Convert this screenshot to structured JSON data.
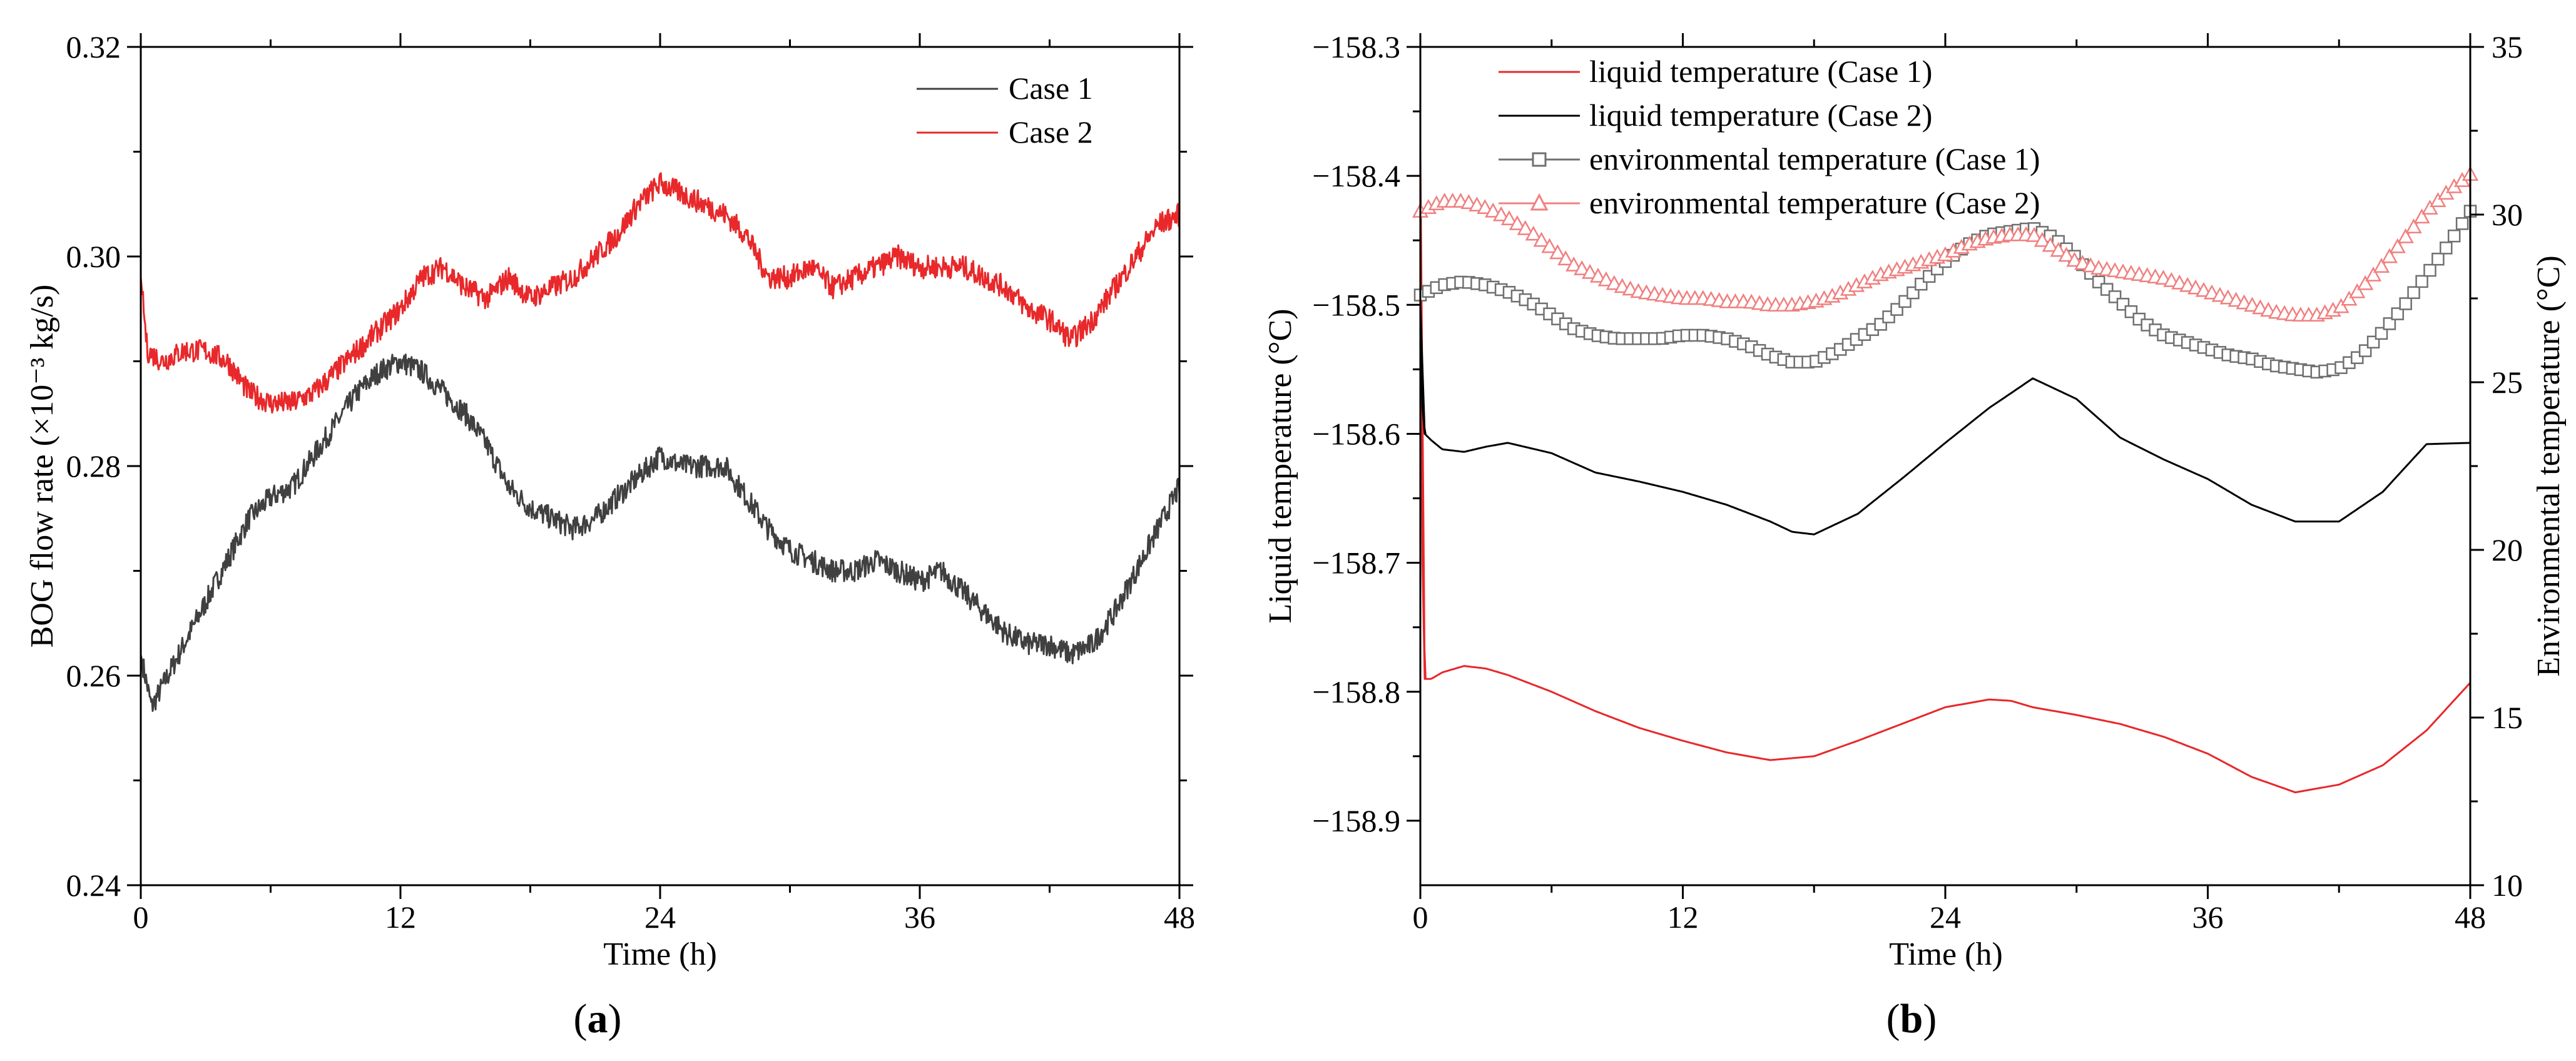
{
  "chart_data": [
    {
      "id": "a",
      "type": "line",
      "panel_label_open": "(",
      "panel_label_letter": "a",
      "panel_label_close": ")",
      "xlabel": "Time (h)",
      "ylabel": "BOG flow rate (×10⁻³ kg/s)",
      "xlim": [
        0,
        48
      ],
      "ylim": [
        0.24,
        0.32
      ],
      "xticks": [
        0,
        12,
        24,
        36,
        48
      ],
      "xtick_labels": [
        "0",
        "12",
        "24",
        "36",
        "48"
      ],
      "yticks": [
        0.24,
        0.26,
        0.28,
        0.3,
        0.32
      ],
      "ytick_labels": [
        "0.24",
        "0.26",
        "0.28",
        "0.30",
        "0.32"
      ],
      "legend_position": "top-right",
      "series": [
        {
          "name": "Case 1",
          "color": "#404040",
          "x": [
            0,
            0.5,
            1,
            2,
            3,
            4,
            5,
            6,
            7,
            8,
            9,
            10,
            11,
            12,
            13,
            14,
            15,
            16,
            17,
            18,
            19,
            20,
            21,
            22,
            23,
            24,
            25,
            26,
            27,
            28,
            29,
            30,
            31,
            32,
            33,
            34,
            35,
            36,
            37,
            38,
            39,
            40,
            41,
            42,
            43,
            44,
            45,
            46,
            47,
            48
          ],
          "values": [
            0.262,
            0.257,
            0.259,
            0.263,
            0.267,
            0.271,
            0.275,
            0.277,
            0.278,
            0.281,
            0.284,
            0.287,
            0.289,
            0.29,
            0.289,
            0.287,
            0.285,
            0.282,
            0.278,
            0.276,
            0.275,
            0.274,
            0.275,
            0.277,
            0.279,
            0.281,
            0.28,
            0.28,
            0.28,
            0.277,
            0.274,
            0.272,
            0.271,
            0.27,
            0.27,
            0.271,
            0.27,
            0.269,
            0.27,
            0.268,
            0.266,
            0.264,
            0.263,
            0.263,
            0.262,
            0.263,
            0.266,
            0.27,
            0.274,
            0.278
          ]
        },
        {
          "name": "Case 2",
          "color": "#e8282a",
          "x": [
            0,
            0.3,
            1,
            2,
            3,
            4,
            5,
            6,
            7,
            8,
            9,
            10,
            11,
            12,
            13,
            14,
            15,
            16,
            17,
            18,
            19,
            20,
            21,
            22,
            23,
            24,
            25,
            26,
            27,
            28,
            29,
            30,
            31,
            32,
            33,
            34,
            35,
            36,
            37,
            38,
            39,
            40,
            41,
            42,
            43,
            44,
            45,
            46,
            47,
            48
          ],
          "values": [
            0.298,
            0.291,
            0.29,
            0.291,
            0.291,
            0.29,
            0.287,
            0.286,
            0.286,
            0.287,
            0.289,
            0.291,
            0.293,
            0.295,
            0.298,
            0.299,
            0.297,
            0.296,
            0.298,
            0.296,
            0.297,
            0.298,
            0.3,
            0.302,
            0.305,
            0.307,
            0.306,
            0.305,
            0.304,
            0.302,
            0.298,
            0.298,
            0.299,
            0.297,
            0.298,
            0.299,
            0.3,
            0.299,
            0.299,
            0.299,
            0.298,
            0.297,
            0.295,
            0.294,
            0.292,
            0.294,
            0.297,
            0.3,
            0.303,
            0.304
          ]
        }
      ]
    },
    {
      "id": "b",
      "type": "line",
      "panel_label_open": "(",
      "panel_label_letter": "b",
      "panel_label_close": ")",
      "xlabel": "Time (h)",
      "ylabel": "Liquid temperature (°C)",
      "ylabel_right": "Environmental temperature (°C)",
      "xlim": [
        0,
        48
      ],
      "ylim": [
        -158.95,
        -158.3
      ],
      "ylim_right": [
        10,
        35
      ],
      "xticks": [
        0,
        12,
        24,
        36,
        48
      ],
      "xtick_labels": [
        "0",
        "12",
        "24",
        "36",
        "48"
      ],
      "yticks": [
        -158.9,
        -158.8,
        -158.7,
        -158.6,
        -158.5,
        -158.4,
        -158.3
      ],
      "ytick_labels": [
        "−158.9",
        "−158.8",
        "−158.7",
        "−158.6",
        "−158.5",
        "−158.4",
        "−158.3"
      ],
      "yticks_right": [
        10,
        15,
        20,
        25,
        30,
        35
      ],
      "ytick_labels_right": [
        "10",
        "15",
        "20",
        "25",
        "30",
        "35"
      ],
      "legend_position": "top-left",
      "series": [
        {
          "name": "liquid temperature (Case 1)",
          "axis": "left",
          "marker": "none",
          "color": "#e8282a",
          "x": [
            0,
            0.1,
            0.2,
            0.5,
            1,
            2,
            3,
            4,
            6,
            8,
            10,
            12,
            14,
            16,
            18,
            20,
            22,
            24,
            26,
            27,
            28,
            30,
            32,
            34,
            36,
            38,
            40,
            42,
            44,
            46,
            48
          ],
          "values": [
            -158.38,
            -158.7,
            -158.79,
            -158.79,
            -158.785,
            -158.78,
            -158.782,
            -158.787,
            -158.8,
            -158.815,
            -158.828,
            -158.838,
            -158.847,
            -158.853,
            -158.85,
            -158.838,
            -158.825,
            -158.812,
            -158.806,
            -158.807,
            -158.812,
            -158.818,
            -158.825,
            -158.835,
            -158.848,
            -158.866,
            -158.878,
            -158.872,
            -158.857,
            -158.83,
            -158.793
          ]
        },
        {
          "name": "liquid temperature (Case 2)",
          "axis": "left",
          "marker": "none",
          "color": "#000000",
          "x": [
            0,
            0.1,
            0.2,
            0.5,
            1,
            2,
            3,
            4,
            6,
            8,
            10,
            12,
            14,
            16,
            17,
            18,
            20,
            22,
            24,
            26,
            28,
            30,
            32,
            34,
            36,
            38,
            40,
            42,
            44,
            46,
            48
          ],
          "values": [
            -158.5,
            -158.58,
            -158.6,
            -158.605,
            -158.612,
            -158.614,
            -158.61,
            -158.607,
            -158.615,
            -158.63,
            -158.637,
            -158.645,
            -158.655,
            -158.668,
            -158.676,
            -158.678,
            -158.662,
            -158.635,
            -158.607,
            -158.58,
            -158.557,
            -158.573,
            -158.603,
            -158.62,
            -158.635,
            -158.655,
            -158.668,
            -158.668,
            -158.645,
            -158.608,
            -158.607
          ]
        },
        {
          "name": "environmental temperature (Case 1)",
          "axis": "right",
          "marker": "square",
          "color": "#707070",
          "x": [
            0,
            1,
            2,
            3,
            4,
            5,
            6,
            7,
            8,
            9,
            10,
            11,
            12,
            13,
            14,
            15,
            16,
            17,
            18,
            19,
            20,
            21,
            22,
            23,
            24,
            25,
            26,
            27,
            28,
            29,
            30,
            31,
            32,
            33,
            34,
            35,
            36,
            37,
            38,
            39,
            40,
            41,
            42,
            43,
            44,
            45,
            46,
            47,
            48
          ],
          "values": [
            27.6,
            27.9,
            28.0,
            27.9,
            27.7,
            27.4,
            27.0,
            26.6,
            26.4,
            26.3,
            26.3,
            26.3,
            26.4,
            26.4,
            26.3,
            26.1,
            25.8,
            25.6,
            25.6,
            25.9,
            26.3,
            26.7,
            27.3,
            28.0,
            28.6,
            29.1,
            29.4,
            29.5,
            29.6,
            29.3,
            28.7,
            28.0,
            27.4,
            26.8,
            26.4,
            26.2,
            26.0,
            25.8,
            25.7,
            25.5,
            25.4,
            25.3,
            25.4,
            25.8,
            26.5,
            27.3,
            28.2,
            29.1,
            30.1
          ]
        },
        {
          "name": "environmental temperature (Case 2)",
          "axis": "right",
          "marker": "triangle",
          "color": "#f08080",
          "x": [
            0,
            1,
            2,
            3,
            4,
            5,
            6,
            7,
            8,
            9,
            10,
            11,
            12,
            13,
            14,
            15,
            16,
            17,
            18,
            19,
            20,
            21,
            22,
            23,
            24,
            25,
            26,
            27,
            28,
            29,
            30,
            31,
            32,
            33,
            34,
            35,
            36,
            37,
            38,
            39,
            40,
            41,
            42,
            43,
            44,
            45,
            46,
            47,
            48
          ],
          "values": [
            30.1,
            30.4,
            30.4,
            30.2,
            29.9,
            29.5,
            29.0,
            28.5,
            28.2,
            27.9,
            27.7,
            27.6,
            27.5,
            27.5,
            27.4,
            27.4,
            27.3,
            27.3,
            27.4,
            27.6,
            27.9,
            28.2,
            28.4,
            28.6,
            28.8,
            29.1,
            29.3,
            29.4,
            29.4,
            29.0,
            28.6,
            28.4,
            28.3,
            28.2,
            28.1,
            27.9,
            27.7,
            27.5,
            27.3,
            27.1,
            27.0,
            27.0,
            27.2,
            27.8,
            28.5,
            29.3,
            30.1,
            30.7,
            31.2
          ]
        }
      ]
    }
  ]
}
